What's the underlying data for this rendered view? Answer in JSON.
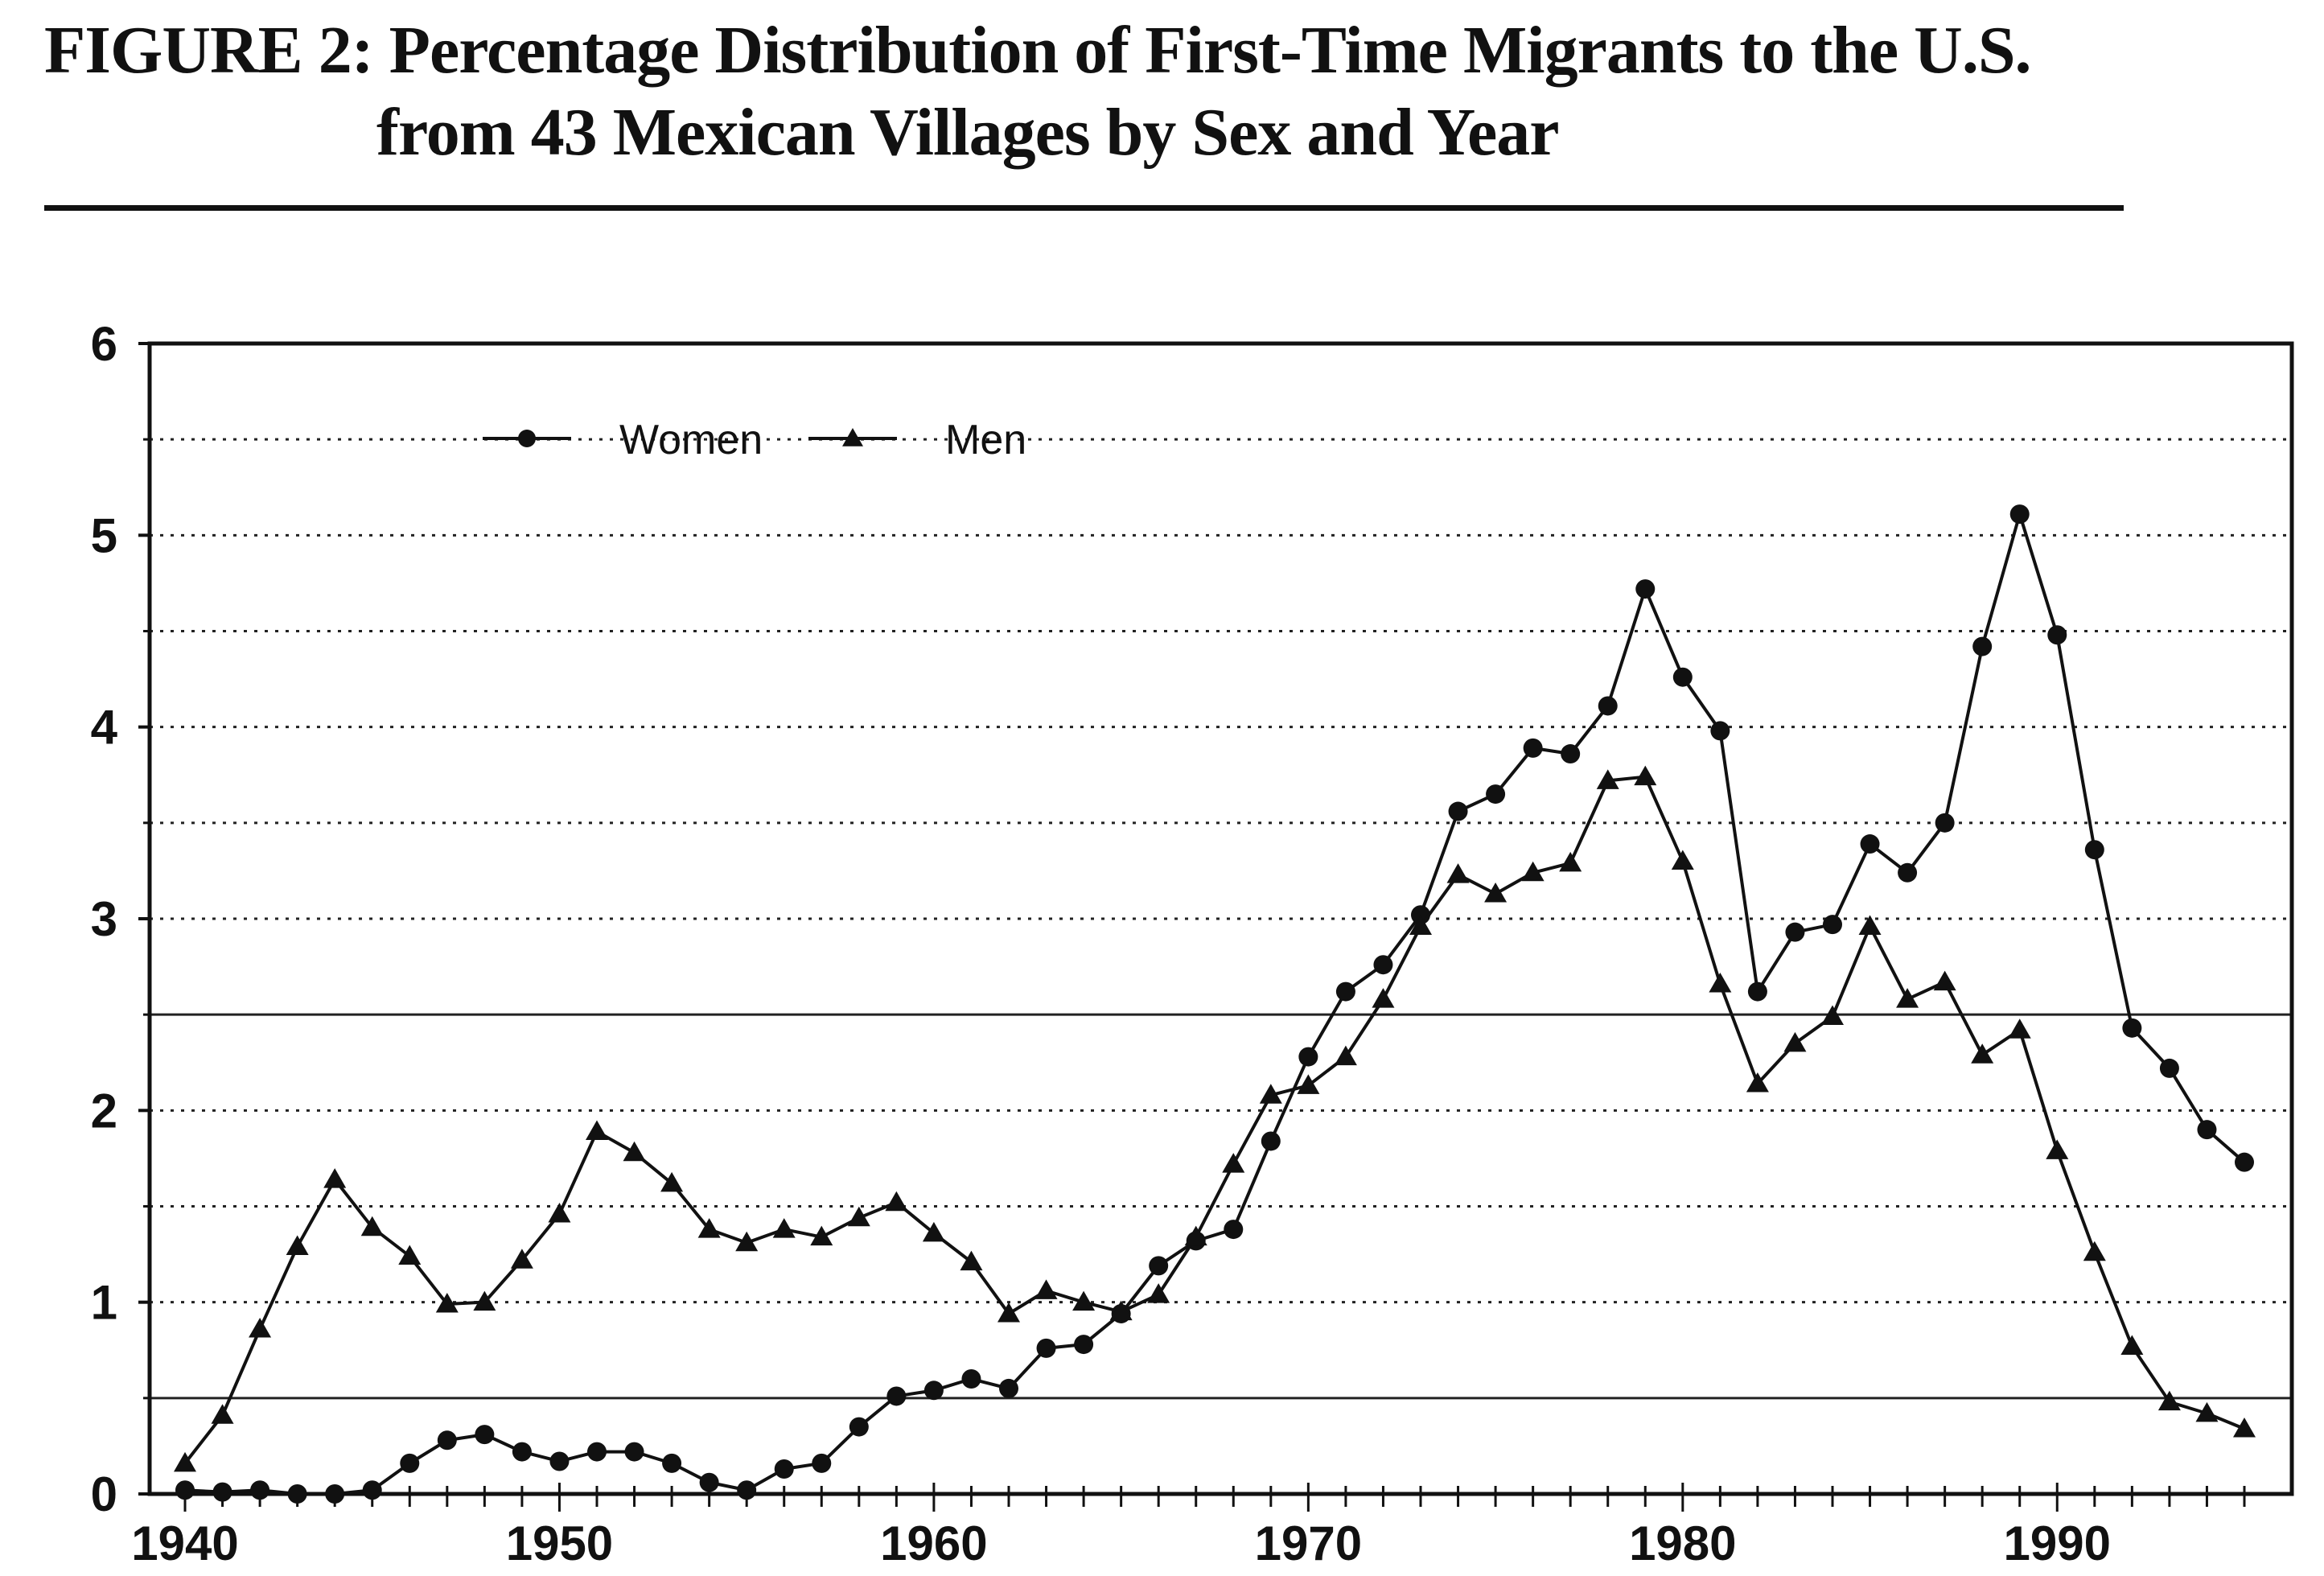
{
  "chart_data": {
    "type": "line",
    "title": "FIGURE 2: Percentage Distribution of First-Time Migrants to the U.S.",
    "subtitle": "from 43 Mexican Villages by Sex and Year",
    "xlabel": "",
    "ylabel": "",
    "xlim": [
      1940,
      1995
    ],
    "ylim": [
      0,
      6
    ],
    "x_ticks": [
      "1940",
      "1950",
      "1960",
      "1970",
      "1980",
      "1990"
    ],
    "y_ticks": [
      "0",
      "1",
      "2",
      "3",
      "4",
      "5",
      "6"
    ],
    "grid": true,
    "legend": "top-left",
    "x": [
      1940,
      1941,
      1942,
      1943,
      1944,
      1945,
      1946,
      1947,
      1948,
      1949,
      1950,
      1951,
      1952,
      1953,
      1954,
      1955,
      1956,
      1957,
      1958,
      1959,
      1960,
      1961,
      1962,
      1963,
      1964,
      1965,
      1966,
      1967,
      1968,
      1969,
      1970,
      1971,
      1972,
      1973,
      1974,
      1975,
      1976,
      1977,
      1978,
      1979,
      1980,
      1981,
      1982,
      1983,
      1984,
      1985,
      1986,
      1987,
      1988,
      1989,
      1990,
      1991,
      1992,
      1993,
      1994,
      1995
    ],
    "series": [
      {
        "name": "Women",
        "marker": "circle",
        "values": [
          0.02,
          0.01,
          0.02,
          0.0,
          0.0,
          0.02,
          0.16,
          0.28,
          0.31,
          0.22,
          0.17,
          0.22,
          0.22,
          0.16,
          0.06,
          0.02,
          0.13,
          0.16,
          0.35,
          0.51,
          0.54,
          0.6,
          0.55,
          0.76,
          0.78,
          0.94,
          1.19,
          1.32,
          1.38,
          1.84,
          2.28,
          2.62,
          2.76,
          3.02,
          3.56,
          3.65,
          3.89,
          3.86,
          4.11,
          4.72,
          4.26,
          3.98,
          2.62,
          2.93,
          2.97,
          3.39,
          3.24,
          3.5,
          4.42,
          5.11,
          4.48,
          3.36,
          2.43,
          2.22,
          1.9,
          1.73
        ]
      },
      {
        "name": "Men",
        "marker": "triangle",
        "values": [
          0.16,
          0.41,
          0.86,
          1.29,
          1.64,
          1.39,
          1.24,
          0.99,
          1.0,
          1.22,
          1.46,
          1.89,
          1.78,
          1.62,
          1.38,
          1.31,
          1.38,
          1.34,
          1.44,
          1.52,
          1.36,
          1.21,
          0.94,
          1.06,
          1.0,
          0.95,
          1.04,
          1.34,
          1.72,
          2.08,
          2.13,
          2.28,
          2.58,
          2.96,
          3.23,
          3.13,
          3.24,
          3.29,
          3.72,
          3.74,
          3.3,
          2.66,
          2.14,
          2.35,
          2.49,
          2.96,
          2.58,
          2.67,
          2.29,
          2.42,
          1.79,
          1.26,
          0.77,
          0.48,
          0.42,
          0.34
        ]
      }
    ]
  }
}
